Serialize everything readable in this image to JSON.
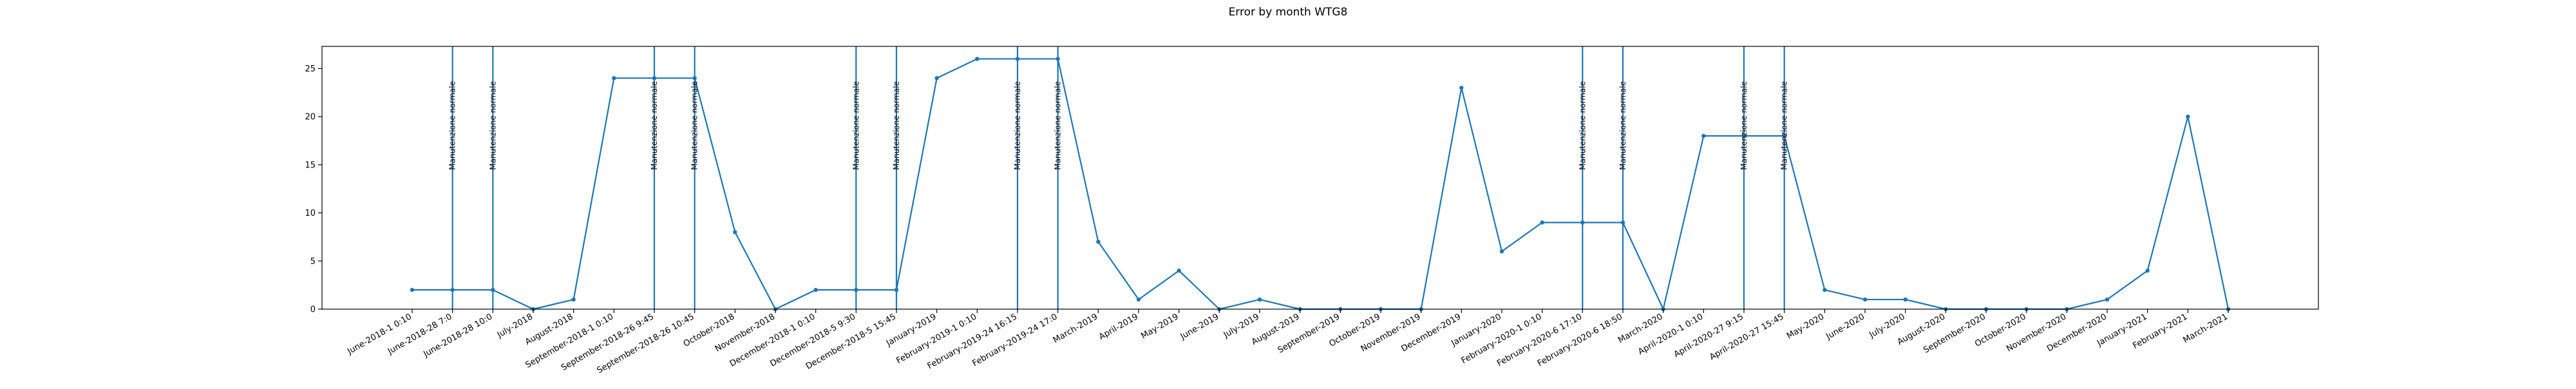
{
  "chart_data": {
    "type": "line",
    "title": "Error by month WTG8",
    "xlabel": "",
    "ylabel": "",
    "ylim": [
      0,
      27.3
    ],
    "yticks": [
      0,
      5,
      10,
      15,
      20,
      25
    ],
    "grid": false,
    "colors": {
      "line": "#1f77b4",
      "axes": "#000000"
    },
    "categories": [
      "June-2018-1 0:10",
      "June-2018-28 7:0",
      "June-2018-28 10:0",
      "July-2018",
      "August-2018",
      "September-2018-1 0:10",
      "September-2018-26 9:45",
      "September-2018-26 10:45",
      "October-2018",
      "November-2018",
      "December-2018-1 0:10",
      "December-2018-5 9:30",
      "December-2018-5 15:45",
      "January-2019",
      "February-2019-1 0:10",
      "February-2019-24 16:15",
      "February-2019-24 17:0",
      "March-2019",
      "April-2019",
      "May-2019",
      "June-2019",
      "July-2019",
      "August-2019",
      "September-2019",
      "October-2019",
      "November-2019",
      "December-2019",
      "January-2020",
      "February-2020-1 0:10",
      "February-2020-6 17:10",
      "February-2020-6 18:50",
      "March-2020",
      "April-2020-1 0:10",
      "April-2020-27 9:15",
      "April-2020-27 15:45",
      "May-2020",
      "June-2020",
      "July-2020",
      "August-2020",
      "September-2020",
      "October-2020",
      "November-2020",
      "December-2020",
      "January-2021",
      "February-2021",
      "March-2021"
    ],
    "series": [
      {
        "values": [
          2,
          2,
          2,
          0,
          1,
          24,
          24,
          24,
          8,
          0,
          2,
          2,
          2,
          24,
          26,
          26,
          26,
          7,
          1,
          4,
          0,
          1,
          0,
          0,
          0,
          0,
          23,
          6,
          9,
          9,
          9,
          0,
          18,
          18,
          18,
          2,
          1,
          1,
          0,
          0,
          0,
          0,
          1,
          4,
          20,
          0
        ]
      }
    ],
    "annotations": [
      {
        "category": "June-2018-28 7:0",
        "label": "Manutenzione normale"
      },
      {
        "category": "June-2018-28 10:0",
        "label": "Manutenzione normale"
      },
      {
        "category": "September-2018-26 9:45",
        "label": "Manutenzione normale"
      },
      {
        "category": "September-2018-26 10:45",
        "label": "Manutenzione normale"
      },
      {
        "category": "December-2018-5 9:30",
        "label": "Manutenzione normale"
      },
      {
        "category": "December-2018-5 15:45",
        "label": "Manutenzione normale"
      },
      {
        "category": "February-2019-24 16:15",
        "label": "Manutenzione normale"
      },
      {
        "category": "February-2019-24 17:0",
        "label": "Manutenzione normale"
      },
      {
        "category": "February-2020-6 17:10",
        "label": "Manutenzione normale"
      },
      {
        "category": "February-2020-6 18:50",
        "label": "Manutenzione normale"
      },
      {
        "category": "April-2020-27 9:15",
        "label": "Manutenzione normale"
      },
      {
        "category": "April-2020-27 15:45",
        "label": "Manutenzione normale"
      }
    ]
  }
}
